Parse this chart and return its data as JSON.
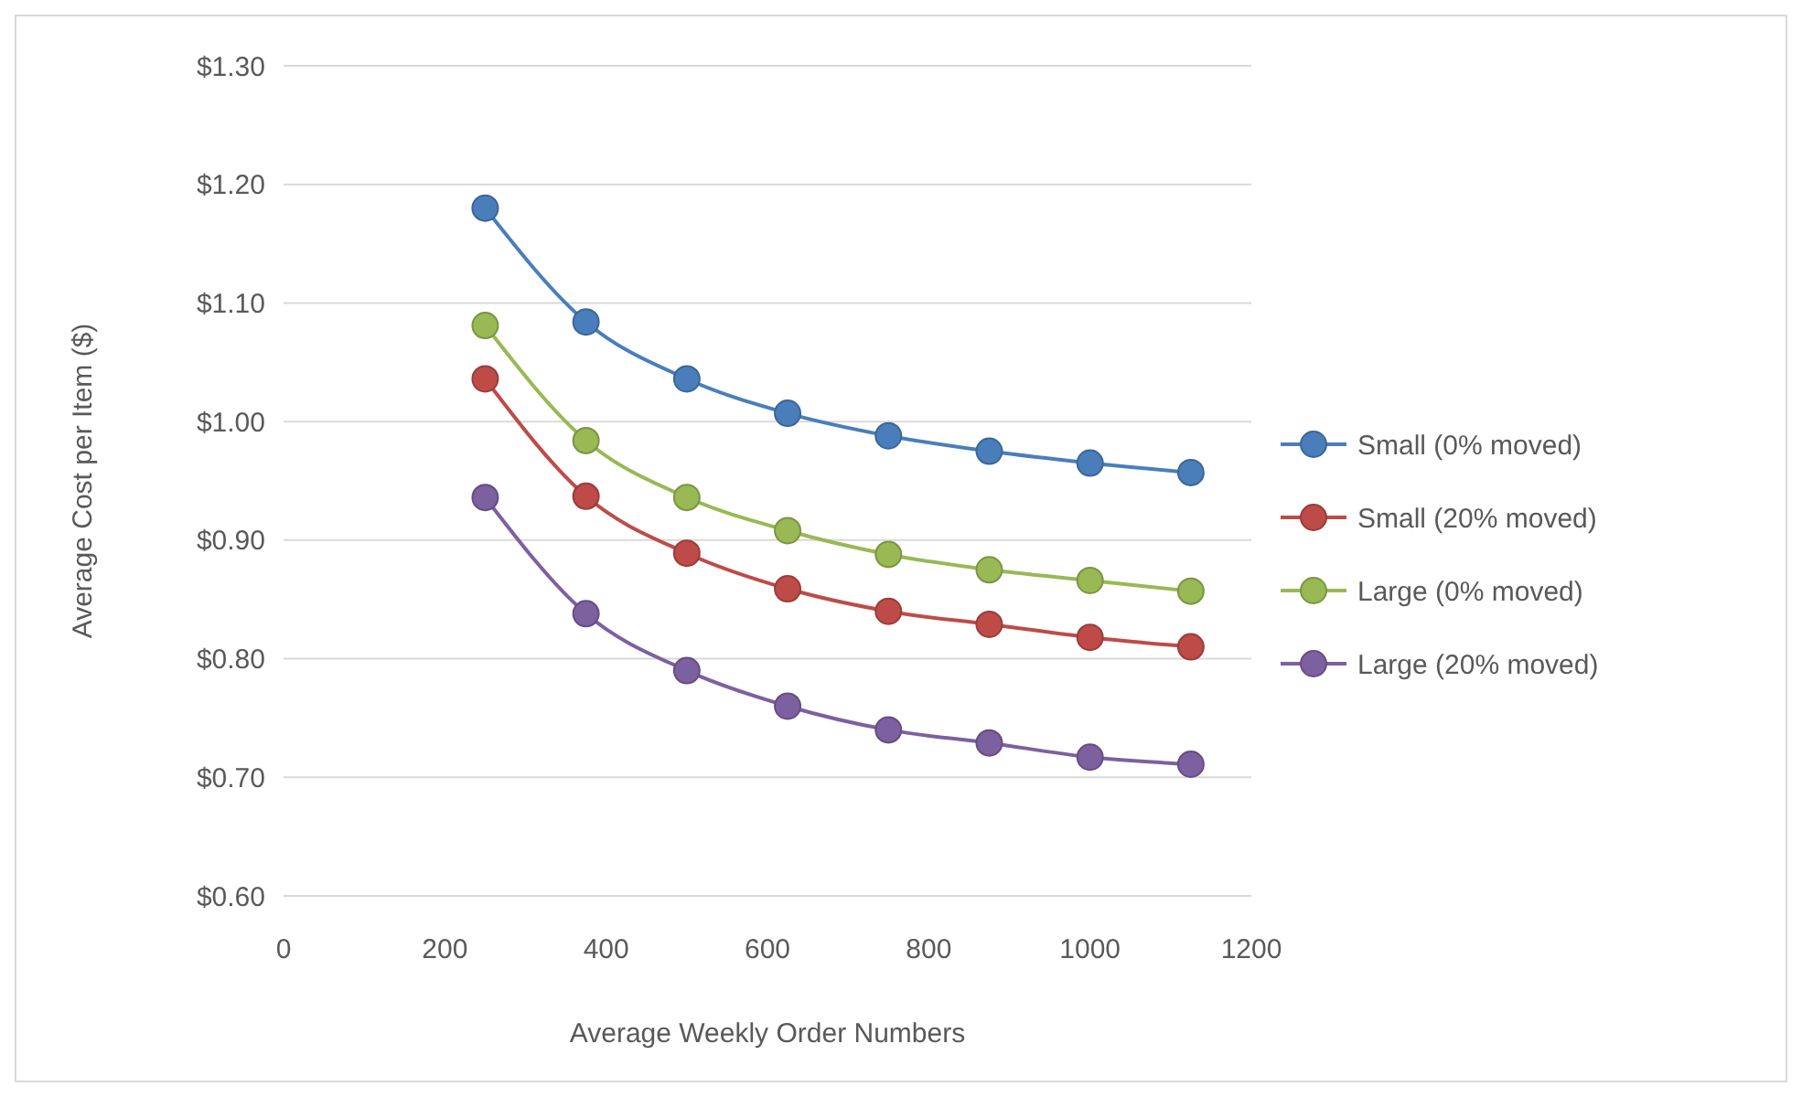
{
  "chart_data": {
    "type": "line",
    "xlabel": "Average Weekly Order Numbers",
    "ylabel": "Average Cost per Item ($)",
    "x": [
      250,
      375,
      500,
      625,
      750,
      875,
      1000,
      1125
    ],
    "xlim": [
      0,
      1200
    ],
    "xticks": [
      0,
      200,
      400,
      600,
      800,
      1000,
      1200
    ],
    "ylim": [
      0.6,
      1.3
    ],
    "yticks": [
      {
        "value": 0.6,
        "label": "$0.60"
      },
      {
        "value": 0.7,
        "label": "$0.70"
      },
      {
        "value": 0.8,
        "label": "$0.80"
      },
      {
        "value": 0.9,
        "label": "$0.90"
      },
      {
        "value": 1.0,
        "label": "$1.00"
      },
      {
        "value": 1.1,
        "label": "$1.10"
      },
      {
        "value": 1.2,
        "label": "$1.20"
      },
      {
        "value": 1.3,
        "label": "$1.30"
      }
    ],
    "grid": "y",
    "legend": "right",
    "marker": "circle",
    "series": [
      {
        "name": "Small (0% moved)",
        "color": "#4a7ebb",
        "values": [
          1.18,
          1.084,
          1.036,
          1.007,
          0.988,
          0.975,
          0.965,
          0.957
        ]
      },
      {
        "name": "Small (20% moved)",
        "color": "#be4b48",
        "values": [
          1.036,
          0.937,
          0.889,
          0.859,
          0.84,
          0.829,
          0.818,
          0.81
        ]
      },
      {
        "name": "Large (0% moved)",
        "color": "#98b954",
        "values": [
          1.081,
          0.984,
          0.936,
          0.908,
          0.888,
          0.875,
          0.866,
          0.857
        ]
      },
      {
        "name": "Large (20% moved)",
        "color": "#7d60a0",
        "values": [
          0.936,
          0.838,
          0.79,
          0.76,
          0.74,
          0.729,
          0.717,
          0.711
        ]
      }
    ]
  }
}
